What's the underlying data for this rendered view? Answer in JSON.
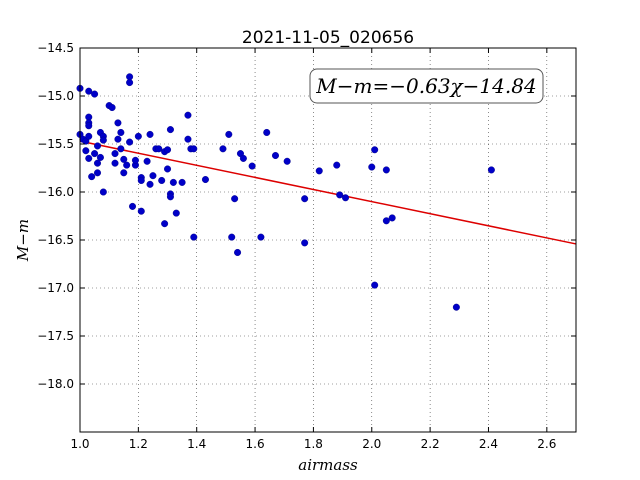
{
  "chart_data": {
    "type": "scatter",
    "title": "2021-11-05_020656",
    "xlabel": "airmass",
    "ylabel": "M−m",
    "xlim": [
      1.0,
      2.7
    ],
    "ylim": [
      -14.5,
      -18.5
    ],
    "y_inverted": true,
    "grid": true,
    "x_ticks": [
      1.0,
      1.2,
      1.4,
      1.6,
      1.8,
      2.0,
      2.2,
      2.4,
      2.6
    ],
    "x_tick_labels": [
      "1.0",
      "1.2",
      "1.4",
      "1.6",
      "1.8",
      "2.0",
      "2.2",
      "2.4",
      "2.6"
    ],
    "y_ticks": [
      -14.5,
      -15.0,
      -15.5,
      -16.0,
      -16.5,
      -17.0,
      -17.5,
      -18.0
    ],
    "y_tick_labels": [
      "−14.5",
      "−15.0",
      "−15.5",
      "−16.0",
      "−16.5",
      "−17.0",
      "−17.5",
      "−18.0"
    ],
    "annotation": "M−m=−0.63χ−14.84",
    "fit": {
      "slope": -0.63,
      "intercept": -14.84,
      "color": "#dd0000"
    },
    "point_color": "#0000c8",
    "points": [
      [
        1.0,
        -14.92
      ],
      [
        1.03,
        -14.95
      ],
      [
        1.05,
        -14.98
      ],
      [
        1.03,
        -15.22
      ],
      [
        1.03,
        -15.28
      ],
      [
        1.03,
        -15.31
      ],
      [
        1.0,
        -15.4
      ],
      [
        1.01,
        -15.45
      ],
      [
        1.02,
        -15.47
      ],
      [
        1.03,
        -15.42
      ],
      [
        1.02,
        -15.57
      ],
      [
        1.03,
        -15.65
      ],
      [
        1.04,
        -15.84
      ],
      [
        1.06,
        -15.8
      ],
      [
        1.05,
        -15.6
      ],
      [
        1.06,
        -15.52
      ],
      [
        1.07,
        -15.38
      ],
      [
        1.08,
        -15.42
      ],
      [
        1.08,
        -15.46
      ],
      [
        1.07,
        -15.64
      ],
      [
        1.06,
        -15.7
      ],
      [
        1.08,
        -16.0
      ],
      [
        1.1,
        -15.1
      ],
      [
        1.11,
        -15.12
      ],
      [
        1.13,
        -15.28
      ],
      [
        1.14,
        -15.38
      ],
      [
        1.13,
        -15.45
      ],
      [
        1.14,
        -15.55
      ],
      [
        1.12,
        -15.6
      ],
      [
        1.12,
        -15.7
      ],
      [
        1.15,
        -15.66
      ],
      [
        1.16,
        -15.72
      ],
      [
        1.15,
        -15.8
      ],
      [
        1.17,
        -15.48
      ],
      [
        1.17,
        -14.8
      ],
      [
        1.17,
        -14.86
      ],
      [
        1.18,
        -16.15
      ],
      [
        1.19,
        -15.72
      ],
      [
        1.19,
        -15.67
      ],
      [
        1.2,
        -15.42
      ],
      [
        1.21,
        -15.85
      ],
      [
        1.21,
        -15.88
      ],
      [
        1.21,
        -16.2
      ],
      [
        1.23,
        -15.68
      ],
      [
        1.24,
        -15.4
      ],
      [
        1.24,
        -15.92
      ],
      [
        1.25,
        -15.83
      ],
      [
        1.26,
        -15.55
      ],
      [
        1.27,
        -15.55
      ],
      [
        1.28,
        -15.88
      ],
      [
        1.29,
        -15.58
      ],
      [
        1.29,
        -16.33
      ],
      [
        1.3,
        -15.56
      ],
      [
        1.3,
        -15.76
      ],
      [
        1.31,
        -15.35
      ],
      [
        1.31,
        -16.02
      ],
      [
        1.31,
        -16.05
      ],
      [
        1.32,
        -15.9
      ],
      [
        1.33,
        -16.22
      ],
      [
        1.35,
        -15.9
      ],
      [
        1.37,
        -15.2
      ],
      [
        1.37,
        -15.45
      ],
      [
        1.38,
        -15.55
      ],
      [
        1.39,
        -15.55
      ],
      [
        1.39,
        -16.47
      ],
      [
        1.43,
        -15.87
      ],
      [
        1.49,
        -15.55
      ],
      [
        1.51,
        -15.4
      ],
      [
        1.52,
        -16.47
      ],
      [
        1.53,
        -16.07
      ],
      [
        1.54,
        -16.63
      ],
      [
        1.55,
        -15.6
      ],
      [
        1.56,
        -15.65
      ],
      [
        1.59,
        -15.73
      ],
      [
        1.62,
        -16.47
      ],
      [
        1.64,
        -15.38
      ],
      [
        1.67,
        -15.62
      ],
      [
        1.71,
        -15.68
      ],
      [
        1.77,
        -16.07
      ],
      [
        1.77,
        -16.53
      ],
      [
        1.82,
        -15.78
      ],
      [
        1.88,
        -15.72
      ],
      [
        1.89,
        -16.03
      ],
      [
        1.91,
        -16.06
      ],
      [
        2.0,
        -15.74
      ],
      [
        2.01,
        -15.56
      ],
      [
        2.01,
        -16.97
      ],
      [
        2.05,
        -15.77
      ],
      [
        2.05,
        -16.3
      ],
      [
        2.07,
        -16.27
      ],
      [
        2.29,
        -17.2
      ],
      [
        2.41,
        -15.77
      ]
    ]
  }
}
